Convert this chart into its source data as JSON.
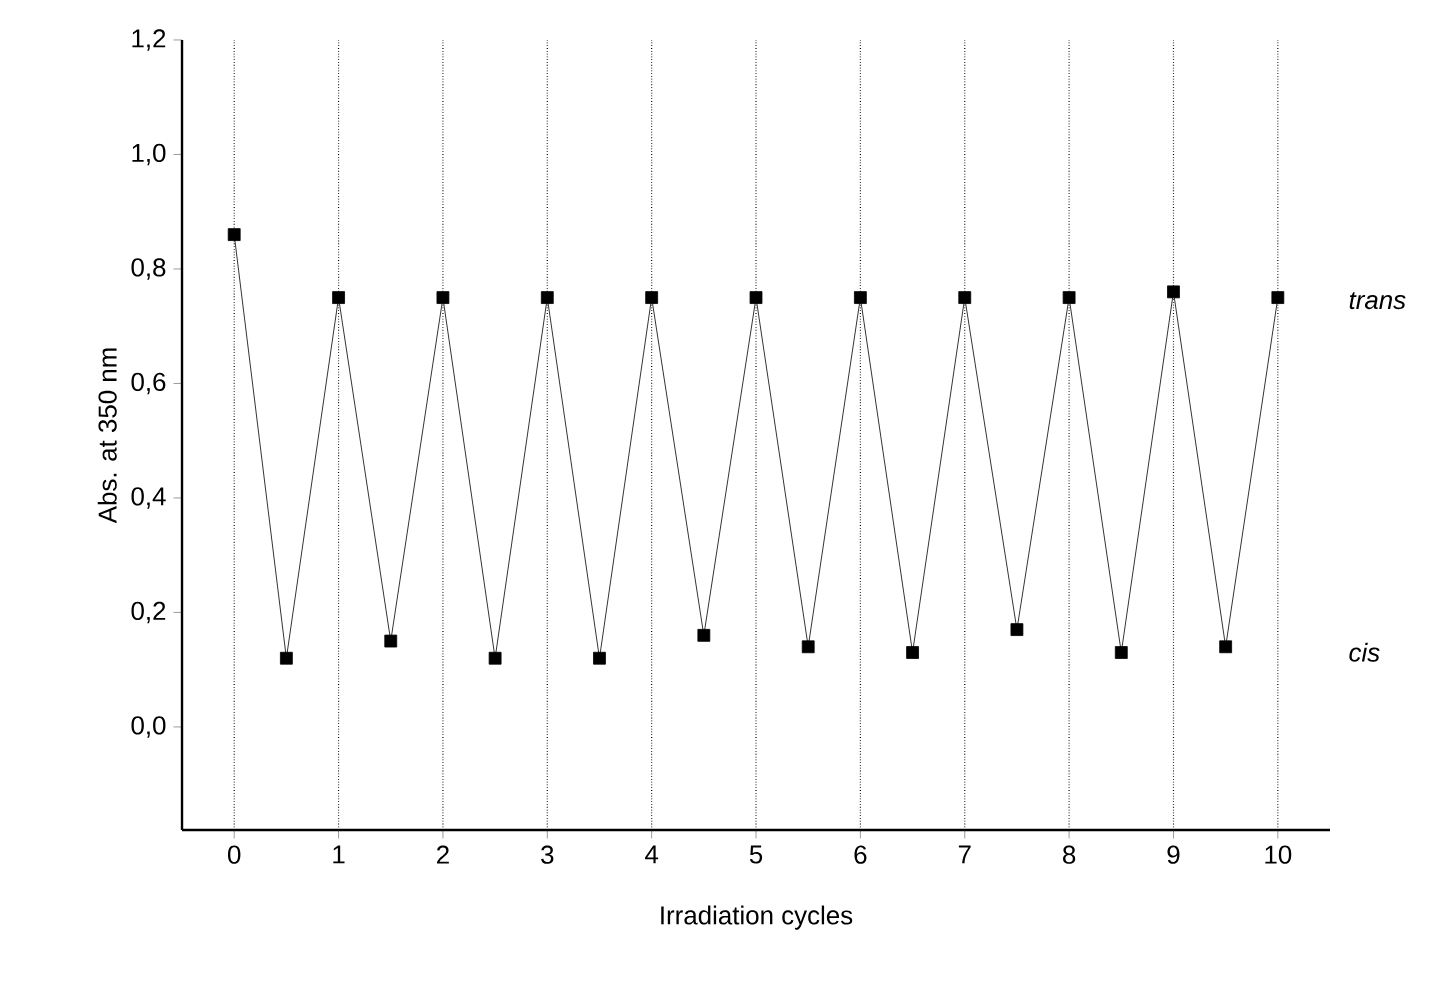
{
  "chart_data": {
    "type": "line",
    "xlabel": "Irradiation cycles",
    "ylabel": "Abs.  at  350 nm",
    "x": [
      0,
      0.5,
      1,
      1.5,
      2,
      2.5,
      3,
      3.5,
      4,
      4.5,
      5,
      5.5,
      6,
      6.5,
      7,
      7.5,
      8,
      8.5,
      9,
      9.5,
      10
    ],
    "series": [
      {
        "color": "#000000",
        "values": [
          0.86,
          0.12,
          0.75,
          0.15,
          0.75,
          0.12,
          0.75,
          0.12,
          0.75,
          0.16,
          0.75,
          0.14,
          0.75,
          0.13,
          0.75,
          0.17,
          0.75,
          0.13,
          0.76,
          0.14,
          0.75
        ]
      }
    ],
    "xlim": [
      -0.5,
      10.5
    ],
    "ylim": [
      -0.18,
      1.2
    ],
    "xticks": [
      0,
      1,
      2,
      3,
      4,
      5,
      6,
      7,
      8,
      9,
      10
    ],
    "yticks": [
      {
        "value": 0.0,
        "label": "0,0"
      },
      {
        "value": 0.2,
        "label": "0,2"
      },
      {
        "value": 0.4,
        "label": "0,4"
      },
      {
        "value": 0.6,
        "label": "0,6"
      },
      {
        "value": 0.8,
        "label": "0,8"
      },
      {
        "value": 1.0,
        "label": "1,0"
      },
      {
        "value": 1.2,
        "label": "1,2"
      }
    ],
    "grid": "x",
    "marker": "square",
    "line_style": "solid",
    "annotations": [
      "trans",
      "cis"
    ]
  }
}
